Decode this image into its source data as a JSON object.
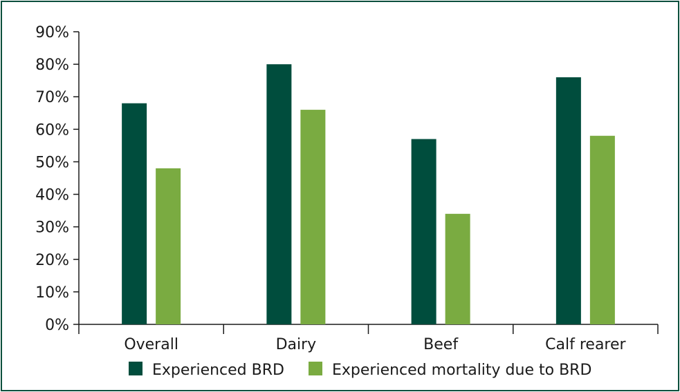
{
  "chart_data": {
    "type": "bar",
    "title": "",
    "xlabel": "",
    "ylabel": "",
    "categories": [
      "Overall",
      "Dairy",
      "Beef",
      "Calf rearer"
    ],
    "series": [
      {
        "name": "Experienced BRD",
        "values": [
          68,
          80,
          57,
          76
        ],
        "color": "#004d3d"
      },
      {
        "name": "Experienced mortality due to BRD",
        "values": [
          48,
          66,
          34,
          58
        ],
        "color": "#7aab41"
      }
    ],
    "ylim": [
      0,
      90
    ],
    "yticks": [
      0,
      10,
      20,
      30,
      40,
      50,
      60,
      70,
      80,
      90
    ],
    "ytick_labels": [
      "0%",
      "10%",
      "20%",
      "30%",
      "40%",
      "50%",
      "60%",
      "70%",
      "80%",
      "90%"
    ],
    "grid": false,
    "legend": "bottom-center"
  },
  "colors": {
    "border": "#0b4f3c",
    "axis": "#1a1a1a"
  }
}
